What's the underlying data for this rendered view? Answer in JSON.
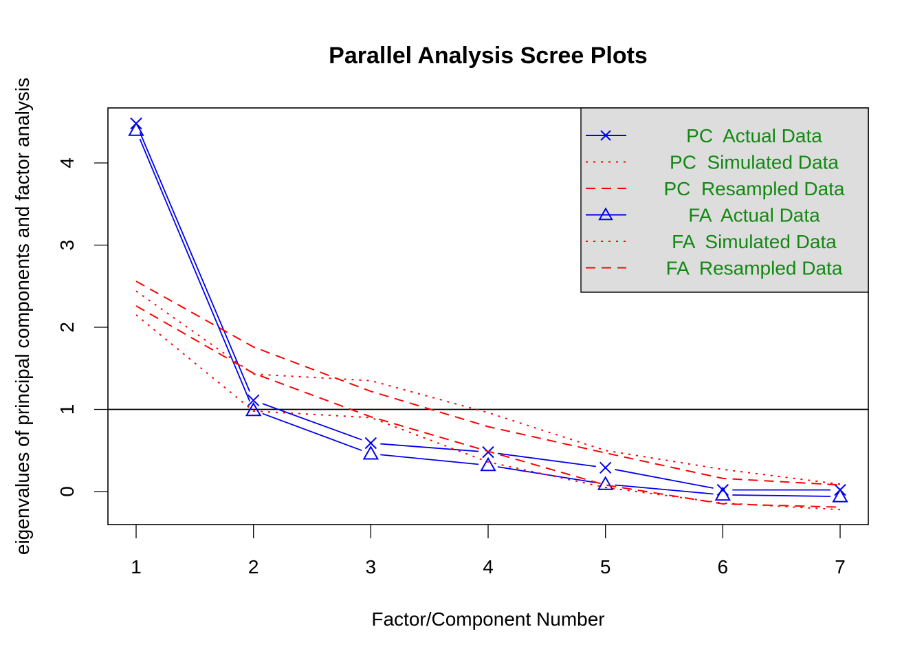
{
  "chart_data": {
    "type": "line",
    "title": "Parallel Analysis Scree Plots",
    "xlabel": "Factor/Component Number",
    "ylabel": "eigenvalues of principal components and factor analysis",
    "x": [
      1,
      2,
      3,
      4,
      5,
      6,
      7
    ],
    "x_ticks": [
      "1",
      "2",
      "3",
      "4",
      "5",
      "6",
      "7"
    ],
    "y_ticks": [
      "0",
      "1",
      "2",
      "3",
      "4"
    ],
    "xlim": [
      0.76,
      7.24
    ],
    "ylim": [
      -0.4,
      4.67
    ],
    "grid": false,
    "reference_line": {
      "y": 1,
      "color": "#000000"
    },
    "legend_position": "topright",
    "legend_background": "#dddddd",
    "legend_text_color": "#118811",
    "series": [
      {
        "name": "PC  Actual Data",
        "color": "#0000ee",
        "linestyle": "solid",
        "marker": "x",
        "values": [
          4.48,
          1.11,
          0.59,
          0.48,
          0.29,
          0.02,
          0.02
        ]
      },
      {
        "name": "PC  Simulated Data",
        "color": "#ff0000",
        "linestyle": "dotted",
        "marker": "none",
        "values": [
          2.44,
          1.43,
          1.35,
          0.96,
          0.5,
          0.27,
          0.09
        ]
      },
      {
        "name": "PC  Resampled Data",
        "color": "#ff0000",
        "linestyle": "dashed",
        "marker": "none",
        "values": [
          2.56,
          1.76,
          1.22,
          0.79,
          0.47,
          0.16,
          0.08
        ]
      },
      {
        "name": "FA  Actual Data",
        "color": "#0000ee",
        "linestyle": "solid",
        "marker": "triangle",
        "values": [
          4.4,
          0.99,
          0.46,
          0.32,
          0.09,
          -0.04,
          -0.06
        ]
      },
      {
        "name": "FA  Simulated Data",
        "color": "#ff0000",
        "linestyle": "dotted",
        "marker": "none",
        "values": [
          2.15,
          0.98,
          0.9,
          0.36,
          0.05,
          -0.14,
          -0.22
        ]
      },
      {
        "name": "FA  Resampled Data",
        "color": "#ff0000",
        "linestyle": "dashed",
        "marker": "none",
        "values": [
          2.26,
          1.44,
          0.91,
          0.49,
          0.08,
          -0.15,
          -0.19
        ]
      }
    ]
  }
}
